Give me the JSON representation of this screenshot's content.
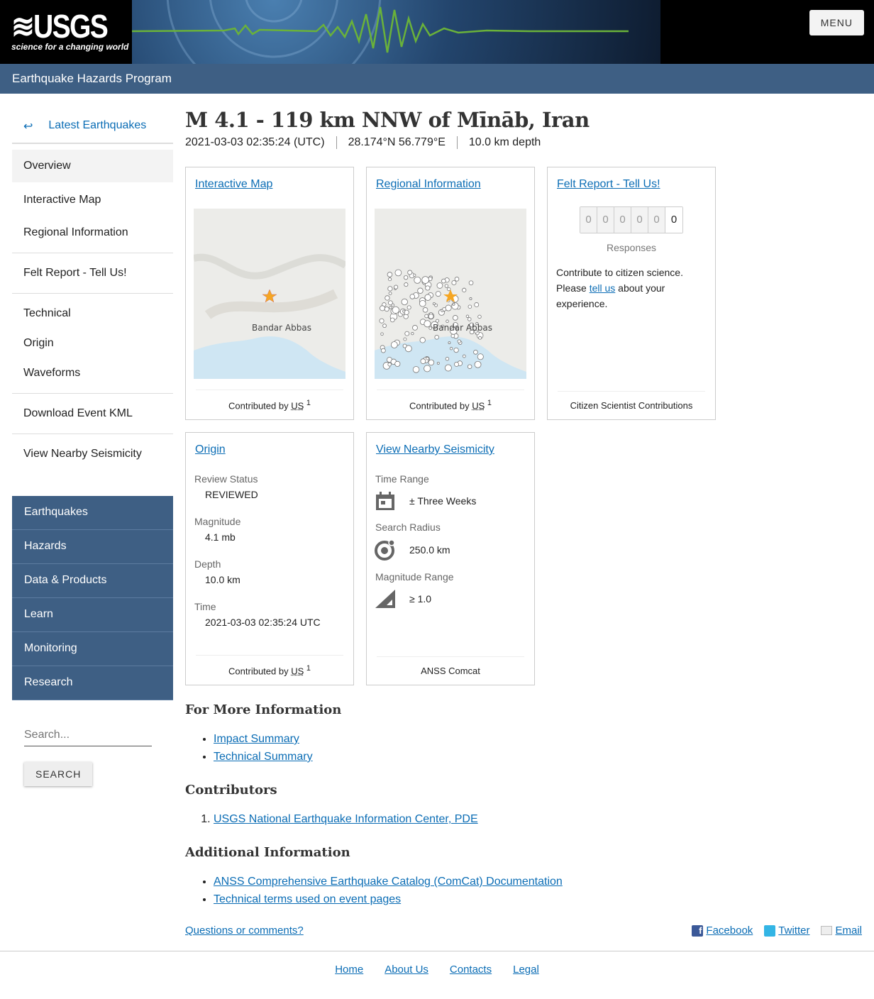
{
  "header": {
    "logo_text": "USGS",
    "logo_tagline": "science for a changing world",
    "menu_label": "MENU",
    "program": "Earthquake Hazards Program"
  },
  "sidebar": {
    "back_label": "Latest Earthquakes",
    "back_icon": "return-arrow-icon",
    "items": [
      "Overview",
      "Interactive Map",
      "Regional Information",
      "Felt Report - Tell Us!",
      "Technical",
      "Origin",
      "Waveforms",
      "Download Event KML",
      "View Nearby Seismicity"
    ],
    "site_nav": [
      "Earthquakes",
      "Hazards",
      "Data & Products",
      "Learn",
      "Monitoring",
      "Research"
    ],
    "search_placeholder": "Search...",
    "search_button": "SEARCH"
  },
  "event": {
    "title": "M 4.1 - 119 km NNW of Mīnāb, Iran",
    "time": "2021-03-03 02:35:24 (UTC)",
    "location": "28.174°N 56.779°E",
    "depth": "10.0 km depth"
  },
  "cards": {
    "map": {
      "title": "Interactive Map",
      "city": "Bandar Abbas",
      "contributed": "Contributed by",
      "source": "US",
      "sup": "1"
    },
    "regional": {
      "title": "Regional Information",
      "city": "Bandar Abbas",
      "contributed": "Contributed by",
      "source": "US",
      "sup": "1"
    },
    "felt": {
      "title": "Felt Report - Tell Us!",
      "digits": [
        "0",
        "0",
        "0",
        "0",
        "0",
        "0"
      ],
      "responses": "Responses",
      "text1": "Contribute to citizen science. Please ",
      "link": "tell us",
      "text2": " about your experience.",
      "footer": "Citizen Scientist Contributions"
    },
    "origin": {
      "title": "Origin",
      "fields": [
        {
          "label": "Review Status",
          "value": "REVIEWED"
        },
        {
          "label": "Magnitude",
          "value": "4.1 mb"
        },
        {
          "label": "Depth",
          "value": "10.0 km"
        },
        {
          "label": "Time",
          "value": "2021-03-03 02:35:24 UTC"
        }
      ],
      "contributed": "Contributed by",
      "source": "US",
      "sup": "1"
    },
    "nearby": {
      "title": "View Nearby Seismicity",
      "time_label": "Time Range",
      "time_value": "± Three Weeks",
      "radius_label": "Search Radius",
      "radius_value": "250.0 km",
      "mag_label": "Magnitude Range",
      "mag_value": "≥ 1.0",
      "footer": "ANSS Comcat"
    }
  },
  "more_info": {
    "heading": "For More Information",
    "links": [
      "Impact Summary",
      "Technical Summary"
    ]
  },
  "contributors": {
    "heading": "Contributors",
    "items": [
      "USGS National Earthquake Information Center, PDE"
    ]
  },
  "additional": {
    "heading": "Additional Information",
    "links": [
      "ANSS Comprehensive Earthquake Catalog (ComCat) Documentation",
      "Technical terms used on event pages"
    ]
  },
  "questions": "Questions or comments?",
  "social": [
    "Facebook",
    "Twitter",
    "Email"
  ],
  "footer_links": [
    "Home",
    "About Us",
    "Contacts",
    "Legal"
  ],
  "colors": {
    "nav": "#3e5f84",
    "link": "#0b6db5",
    "star": "#f5a623"
  }
}
